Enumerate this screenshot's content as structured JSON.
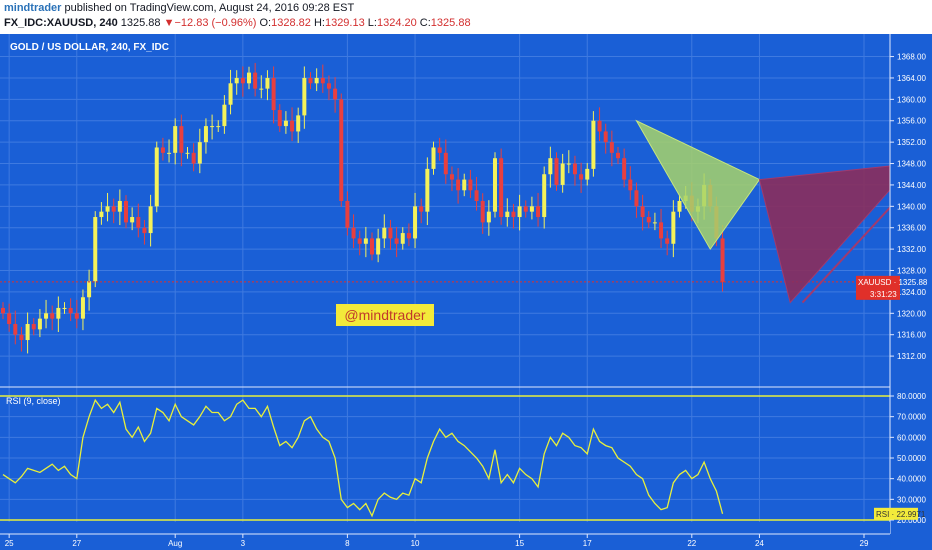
{
  "header": {
    "author": "mindtrader",
    "published_text": " published on TradingView.com, August 24, 2016 09:28 EST",
    "symbol": "FX_IDC:XAUUSD, 240",
    "last": "1325.88",
    "change_arrow": "▼",
    "change": "−12.83 (−0.96%)",
    "o_label": "O:",
    "o_value": "1328.82",
    "h_label": "H:",
    "h_value": "1329.13",
    "l_label": "L:",
    "l_value": "1324.20",
    "c_label": "C:",
    "c_value": "1325.88"
  },
  "price_pane": {
    "title": "GOLD / US DOLLAR, 240, FX_IDC",
    "watermark": "@mindtrader",
    "price_tag_label": "XAUUSD · 1325.88",
    "countdown": "3:31:23"
  },
  "rsi_pane": {
    "title": "RSI (9, close)",
    "tag_label": "RSI · 22.9971"
  },
  "colors": {
    "background": "#1a5fd6",
    "up_candle": "#f5f25a",
    "down_candle": "#e83f3f",
    "rsi_line": "#e8f03c",
    "grid": "#3f7ae0",
    "pattern_green": "#a8d36a",
    "pattern_maroon": "#8b2d5c"
  },
  "chart_data": [
    {
      "type": "candlestick",
      "title": "GOLD / US DOLLAR, 240, FX_IDC",
      "y_ticks": [
        "1368.00",
        "1364.00",
        "1360.00",
        "1356.00",
        "1352.00",
        "1348.00",
        "1344.00",
        "1340.00",
        "1336.00",
        "1332.00",
        "1328.00",
        "1324.00",
        "1320.00",
        "1316.00",
        "1312.00"
      ],
      "y_tick_values": [
        1368,
        1364,
        1360,
        1356,
        1352,
        1348,
        1344,
        1340,
        1336,
        1332,
        1328,
        1324,
        1320,
        1316,
        1312
      ],
      "ylim": [
        1309.4,
        1369.6
      ],
      "x_ticks": [
        "25",
        "27",
        "Aug",
        "3",
        "8",
        "10",
        "15",
        "17",
        "22",
        "24",
        "29"
      ],
      "x_tick_index": [
        1,
        12,
        28,
        39,
        56,
        67,
        84,
        95,
        112,
        123,
        140
      ],
      "last_price": 1325.88,
      "closes": [
        1320,
        1318,
        1316,
        1315,
        1318,
        1317,
        1319,
        1320,
        1319,
        1321,
        1321,
        1320,
        1319,
        1323,
        1326,
        1338,
        1339,
        1340,
        1339,
        1341,
        1337,
        1338,
        1336,
        1335,
        1340,
        1351,
        1350,
        1350,
        1355,
        1350,
        1350,
        1348,
        1352,
        1355,
        1355,
        1355,
        1359,
        1363,
        1364,
        1363,
        1365,
        1362,
        1362,
        1364,
        1358,
        1355,
        1356,
        1354,
        1357,
        1364,
        1363,
        1364,
        1363,
        1362,
        1360,
        1341,
        1336,
        1334,
        1333,
        1334,
        1331,
        1334,
        1336,
        1334,
        1333,
        1335,
        1334,
        1340,
        1339,
        1347,
        1351,
        1350,
        1346,
        1345,
        1343,
        1345,
        1343,
        1341,
        1337,
        1339,
        1349,
        1338,
        1339,
        1338,
        1340,
        1339,
        1340,
        1338,
        1346,
        1349,
        1344,
        1348,
        1348,
        1346,
        1345,
        1347,
        1356,
        1354,
        1352,
        1350,
        1349,
        1345,
        1343,
        1340,
        1338,
        1337,
        1337,
        1334,
        1333,
        1339,
        1341,
        1342,
        1339,
        1340,
        1344,
        1340,
        1334,
        1325.88
      ],
      "annotations": [
        {
          "type": "triangle",
          "fill": "green",
          "vertices": [
            [
              103,
              1356
            ],
            [
              115,
              1332
            ],
            [
              123,
              1345
            ]
          ]
        },
        {
          "type": "triangle",
          "fill": "maroon",
          "vertices": [
            [
              123,
              1345
            ],
            [
              148,
              1348
            ],
            [
              128,
              1322
            ]
          ]
        },
        {
          "type": "arrow",
          "from": [
            130,
            1322
          ],
          "to": [
            150,
            1347
          ]
        }
      ]
    },
    {
      "type": "line",
      "title": "RSI (9, close)",
      "y_ticks": [
        "80.0000",
        "70.0000",
        "60.0000",
        "50.0000",
        "40.0000",
        "30.0000",
        "20.0000"
      ],
      "y_tick_values": [
        80,
        70,
        60,
        50,
        40,
        30,
        20
      ],
      "ylim": [
        20,
        80
      ],
      "hlines": [
        80,
        20
      ],
      "last_value": 22.9971,
      "values": [
        42,
        40,
        38,
        41,
        45,
        44,
        43,
        45,
        47,
        44,
        46,
        42,
        40,
        60,
        70,
        78,
        74,
        76,
        72,
        77,
        64,
        60,
        65,
        58,
        62,
        74,
        72,
        68,
        76,
        70,
        68,
        66,
        70,
        75,
        72,
        72,
        68,
        70,
        76,
        78,
        74,
        74,
        70,
        75,
        65,
        56,
        58,
        55,
        60,
        68,
        70,
        64,
        60,
        58,
        50,
        30,
        26,
        28,
        25,
        28,
        22,
        30,
        33,
        31,
        30,
        33,
        32,
        40,
        38,
        50,
        58,
        64,
        60,
        62,
        58,
        56,
        53,
        50,
        46,
        40,
        54,
        38,
        42,
        38,
        45,
        42,
        40,
        36,
        52,
        60,
        56,
        62,
        60,
        56,
        55,
        52,
        64,
        58,
        56,
        55,
        50,
        48,
        46,
        42,
        40,
        32,
        28,
        25,
        26,
        38,
        42,
        44,
        40,
        42,
        48,
        40,
        34,
        22.9971
      ]
    }
  ]
}
